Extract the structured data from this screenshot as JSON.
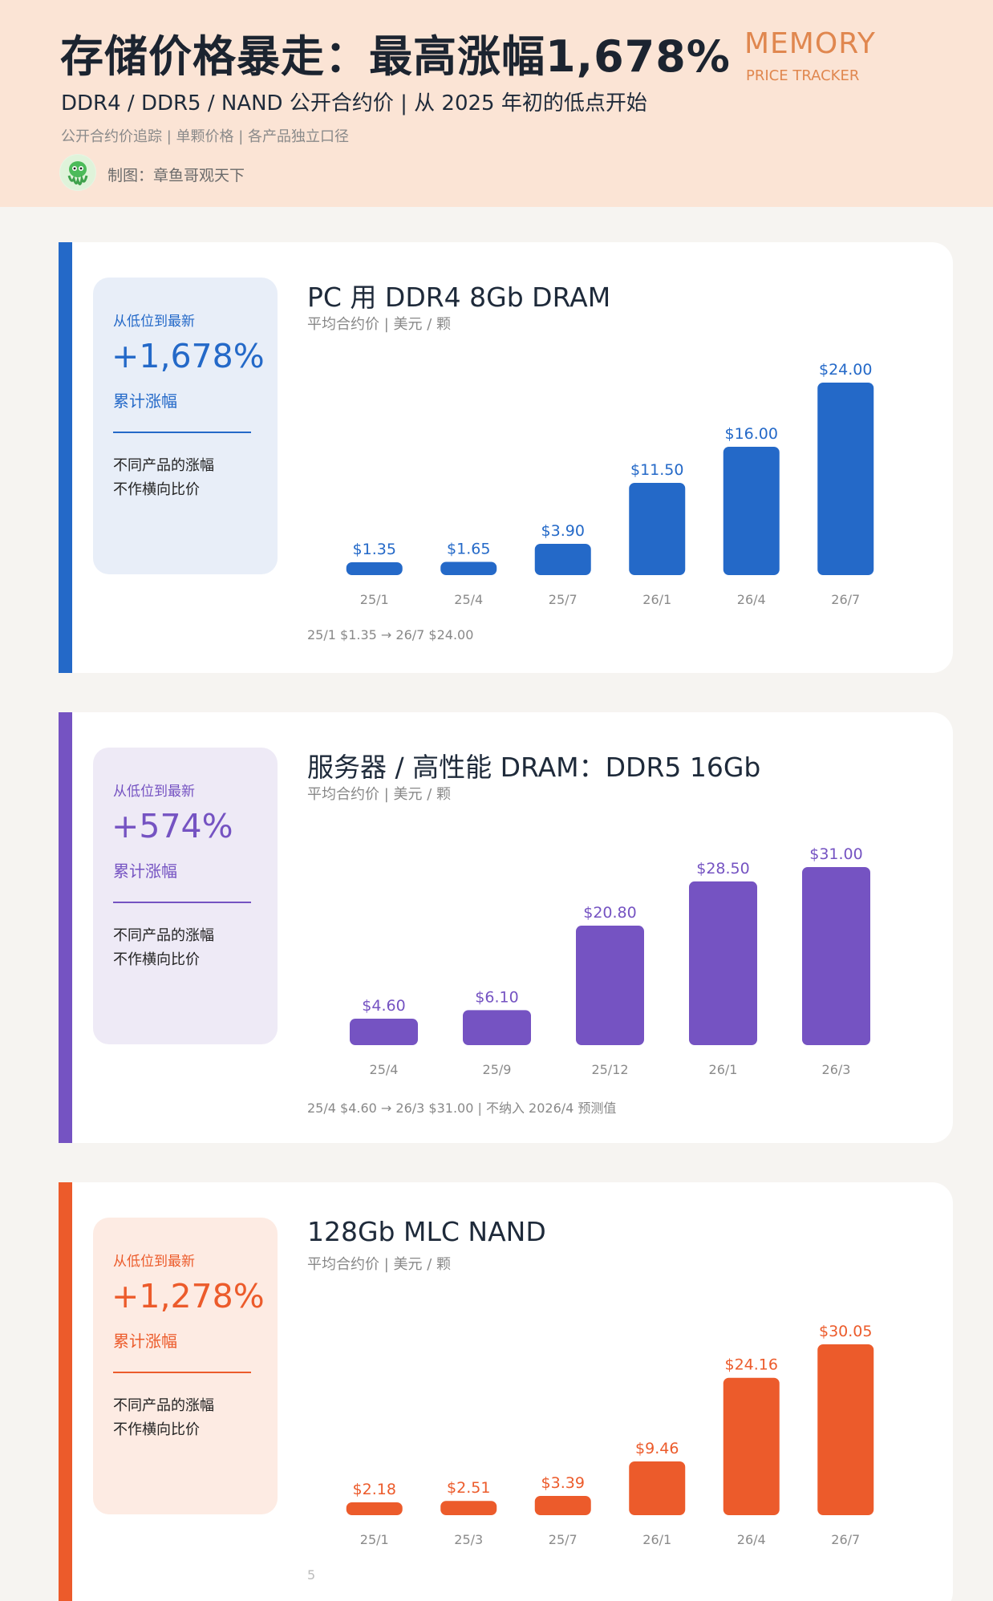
{
  "header": {
    "title": "存储价格暴走：最高涨幅1,678%",
    "subtitle": "DDR4 / DDR5 / NAND 公开合约价 | 从 2025 年初的低点开始",
    "note": "公开合约价追踪 | 单颗价格 | 各产品独立口径",
    "author": "制图：章鱼哥观天下",
    "brand_line1": "MEMORY",
    "brand_line2": "PRICE TRACKER"
  },
  "colors": {
    "header_bg": "#fbe4d5",
    "blue": "#2469c8",
    "purple": "#7553c2",
    "orange": "#ec5b2b"
  },
  "sections": [
    {
      "accent": "#2469c8",
      "summary_bg": "#e8eef8",
      "summary_label": "从低位到最新",
      "summary_value": "+1,678%",
      "summary_caption": "累计涨幅",
      "summary_note1": "不同产品的涨幅",
      "summary_note2": "不作横向比价",
      "title": "PC 用 DDR4 8Gb DRAM",
      "unit": "平均合约价 | 美元 / 颗",
      "footnote": "25/1 $1.35 → 26/7 $24.00"
    },
    {
      "accent": "#7553c2",
      "summary_bg": "#eeeaf6",
      "summary_label": "从低位到最新",
      "summary_value": "+574%",
      "summary_caption": "累计涨幅",
      "summary_note1": "不同产品的涨幅",
      "summary_note2": "不作横向比价",
      "title": "服务器 / 高性能 DRAM：DDR5 16Gb",
      "unit": "平均合约价 | 美元 / 颗",
      "footnote": "25/4 $4.60 → 26/3 $31.00 | 不纳入 2026/4 预测值"
    },
    {
      "accent": "#ec5b2b",
      "summary_bg": "#fdebe3",
      "summary_label": "从低位到最新",
      "summary_value": "+1,278%",
      "summary_caption": "累计涨幅",
      "summary_note1": "不同产品的涨幅",
      "summary_note2": "不作横向比价",
      "title": "128Gb MLC NAND",
      "unit": "平均合约价 | 美元 / 颗",
      "footnote": "5"
    }
  ],
  "chart_data": [
    {
      "type": "bar",
      "title": "PC 用 DDR4 8Gb DRAM",
      "ylabel": "平均合约价 | 美元 / 颗",
      "categories": [
        "25/1",
        "25/4",
        "25/7",
        "26/1",
        "26/4",
        "26/7"
      ],
      "values": [
        1.35,
        1.65,
        3.9,
        11.5,
        16.0,
        24.0
      ],
      "value_labels": [
        "$1.35",
        "$1.65",
        "$3.90",
        "$11.50",
        "$16.00",
        "$24.00"
      ],
      "color": "#2469c8",
      "grid": false,
      "legend": "none"
    },
    {
      "type": "bar",
      "title": "服务器 / 高性能 DRAM：DDR5 16Gb",
      "ylabel": "平均合约价 | 美元 / 颗",
      "categories": [
        "25/4",
        "25/9",
        "25/12",
        "26/1",
        "26/3"
      ],
      "values": [
        4.6,
        6.1,
        20.8,
        28.5,
        31.0
      ],
      "value_labels": [
        "$4.60",
        "$6.10",
        "$20.80",
        "$28.50",
        "$31.00"
      ],
      "color": "#7553c2",
      "grid": false,
      "legend": "none"
    },
    {
      "type": "bar",
      "title": "128Gb MLC NAND",
      "ylabel": "平均合约价 | 美元 / 颗",
      "categories": [
        "25/1",
        "25/3",
        "25/7",
        "26/1",
        "26/4",
        "26/7"
      ],
      "values": [
        2.18,
        2.51,
        3.39,
        9.46,
        24.16,
        30.05
      ],
      "value_labels": [
        "$2.18",
        "$2.51",
        "$3.39",
        "$9.46",
        "$24.16",
        "$30.05"
      ],
      "color": "#ec5b2b",
      "grid": false,
      "legend": "none"
    }
  ]
}
